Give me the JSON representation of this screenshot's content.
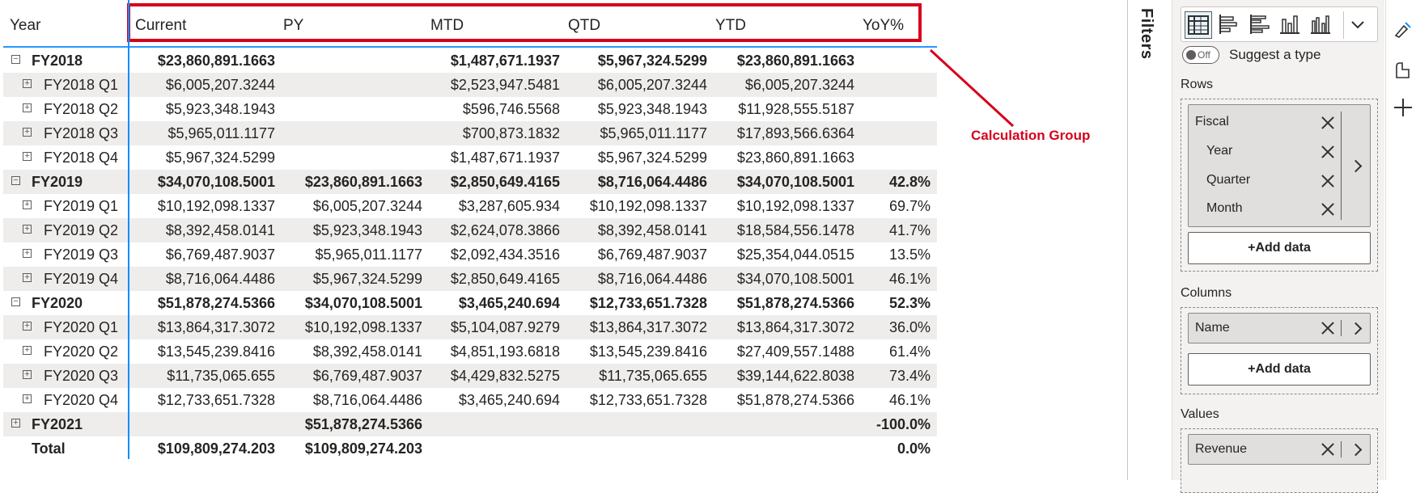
{
  "matrix": {
    "headers": [
      "Year",
      "Current",
      "PY",
      "MTD",
      "QTD",
      "YTD",
      "YoY%"
    ],
    "rows": [
      {
        "label": "FY2018",
        "expander": "minus",
        "level": 0,
        "bold": true,
        "shade": false,
        "values": [
          "$23,860,891.1663",
          "",
          "$1,487,671.1937",
          "$5,967,324.5299",
          "$23,860,891.1663",
          ""
        ]
      },
      {
        "label": "FY2018 Q1",
        "expander": "plus",
        "level": 1,
        "bold": false,
        "shade": true,
        "values": [
          "$6,005,207.3244",
          "",
          "$2,523,947.5481",
          "$6,005,207.3244",
          "$6,005,207.3244",
          ""
        ]
      },
      {
        "label": "FY2018 Q2",
        "expander": "plus",
        "level": 1,
        "bold": false,
        "shade": false,
        "values": [
          "$5,923,348.1943",
          "",
          "$596,746.5568",
          "$5,923,348.1943",
          "$11,928,555.5187",
          ""
        ]
      },
      {
        "label": "FY2018 Q3",
        "expander": "plus",
        "level": 1,
        "bold": false,
        "shade": true,
        "values": [
          "$5,965,011.1177",
          "",
          "$700,873.1832",
          "$5,965,011.1177",
          "$17,893,566.6364",
          ""
        ]
      },
      {
        "label": "FY2018 Q4",
        "expander": "plus",
        "level": 1,
        "bold": false,
        "shade": false,
        "values": [
          "$5,967,324.5299",
          "",
          "$1,487,671.1937",
          "$5,967,324.5299",
          "$23,860,891.1663",
          ""
        ]
      },
      {
        "label": "FY2019",
        "expander": "minus",
        "level": 0,
        "bold": true,
        "shade": true,
        "values": [
          "$34,070,108.5001",
          "$23,860,891.1663",
          "$2,850,649.4165",
          "$8,716,064.4486",
          "$34,070,108.5001",
          "42.8%"
        ]
      },
      {
        "label": "FY2019 Q1",
        "expander": "plus",
        "level": 1,
        "bold": false,
        "shade": false,
        "values": [
          "$10,192,098.1337",
          "$6,005,207.3244",
          "$3,287,605.934",
          "$10,192,098.1337",
          "$10,192,098.1337",
          "69.7%"
        ]
      },
      {
        "label": "FY2019 Q2",
        "expander": "plus",
        "level": 1,
        "bold": false,
        "shade": true,
        "values": [
          "$8,392,458.0141",
          "$5,923,348.1943",
          "$2,624,078.3866",
          "$8,392,458.0141",
          "$18,584,556.1478",
          "41.7%"
        ]
      },
      {
        "label": "FY2019 Q3",
        "expander": "plus",
        "level": 1,
        "bold": false,
        "shade": false,
        "values": [
          "$6,769,487.9037",
          "$5,965,011.1177",
          "$2,092,434.3516",
          "$6,769,487.9037",
          "$25,354,044.0515",
          "13.5%"
        ]
      },
      {
        "label": "FY2019 Q4",
        "expander": "plus",
        "level": 1,
        "bold": false,
        "shade": true,
        "values": [
          "$8,716,064.4486",
          "$5,967,324.5299",
          "$2,850,649.4165",
          "$8,716,064.4486",
          "$34,070,108.5001",
          "46.1%"
        ]
      },
      {
        "label": "FY2020",
        "expander": "minus",
        "level": 0,
        "bold": true,
        "shade": false,
        "values": [
          "$51,878,274.5366",
          "$34,070,108.5001",
          "$3,465,240.694",
          "$12,733,651.7328",
          "$51,878,274.5366",
          "52.3%"
        ]
      },
      {
        "label": "FY2020 Q1",
        "expander": "plus",
        "level": 1,
        "bold": false,
        "shade": true,
        "values": [
          "$13,864,317.3072",
          "$10,192,098.1337",
          "$5,104,087.9279",
          "$13,864,317.3072",
          "$13,864,317.3072",
          "36.0%"
        ]
      },
      {
        "label": "FY2020 Q2",
        "expander": "plus",
        "level": 1,
        "bold": false,
        "shade": false,
        "values": [
          "$13,545,239.8416",
          "$8,392,458.0141",
          "$4,851,193.6818",
          "$13,545,239.8416",
          "$27,409,557.1488",
          "61.4%"
        ]
      },
      {
        "label": "FY2020 Q3",
        "expander": "plus",
        "level": 1,
        "bold": false,
        "shade": true,
        "values": [
          "$11,735,065.655",
          "$6,769,487.9037",
          "$4,429,832.5275",
          "$11,735,065.655",
          "$39,144,622.8038",
          "73.4%"
        ]
      },
      {
        "label": "FY2020 Q4",
        "expander": "plus",
        "level": 1,
        "bold": false,
        "shade": false,
        "values": [
          "$12,733,651.7328",
          "$8,716,064.4486",
          "$3,465,240.694",
          "$12,733,651.7328",
          "$51,878,274.5366",
          "46.1%"
        ]
      },
      {
        "label": "FY2021",
        "expander": "plus",
        "level": 0,
        "bold": true,
        "shade": true,
        "values": [
          "",
          "$51,878,274.5366",
          "",
          "",
          "",
          "-100.0%"
        ]
      },
      {
        "label": "Total",
        "expander": "none",
        "level": 0,
        "bold": true,
        "shade": false,
        "values": [
          "$109,809,274.203",
          "$109,809,274.203",
          "",
          "",
          "",
          "0.0%"
        ]
      }
    ]
  },
  "annotation": {
    "label": "Calculation Group",
    "color": "#d6001c"
  },
  "filters": {
    "label": "Filters"
  },
  "build_pane": {
    "viz_icons": [
      "matrix-icon",
      "stacked-bar-icon",
      "clustered-bar-icon",
      "stacked-column-icon",
      "clustered-column-icon",
      "chevron-down-icon"
    ],
    "suggest": {
      "toggle": "Off",
      "label": "Suggest a type"
    },
    "rows": {
      "title": "Rows",
      "group": "Fiscal",
      "fields": [
        "Year",
        "Quarter",
        "Month"
      ],
      "add": "+Add data"
    },
    "columns": {
      "title": "Columns",
      "fields": [
        "Name"
      ],
      "add": "+Add data"
    },
    "values": {
      "title": "Values",
      "fields": [
        "Revenue"
      ]
    }
  },
  "colors": {
    "accent": "#118dff",
    "highlight": "#d6001c",
    "shade": "#eeedec"
  }
}
